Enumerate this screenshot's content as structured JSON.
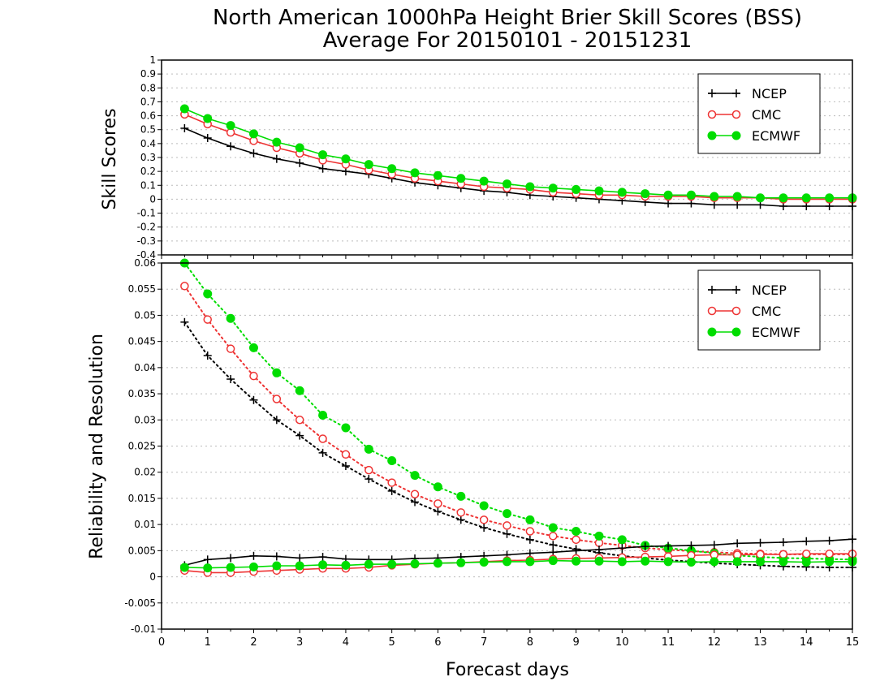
{
  "title_line1": "North American 1000hPa Height Brier Skill Scores (BSS)",
  "title_line2": "Average For 20150101 - 20151231",
  "xlabel": "Forecast days",
  "colors": {
    "NCEP": "#000000",
    "CMC": "#ee3333",
    "ECMWF": "#00dd00"
  },
  "chart_data": [
    {
      "type": "line",
      "ylabel": "Skill Scores",
      "xlim": [
        0,
        15
      ],
      "ylim": [
        -0.4,
        1
      ],
      "x_ticks": [
        "0",
        "1",
        "2",
        "3",
        "4",
        "5",
        "6",
        "7",
        "8",
        "9",
        "10",
        "11",
        "12",
        "13",
        "14",
        "15"
      ],
      "y_ticks": [
        "-0.4",
        "-0.3",
        "-0.2",
        "-0.1",
        "0",
        "0.1",
        "0.2",
        "0.3",
        "0.4",
        "0.5",
        "0.6",
        "0.7",
        "0.8",
        "0.9",
        "1"
      ],
      "grid": true,
      "legend_position": "top-right",
      "x": [
        0.5,
        1,
        1.5,
        2,
        2.5,
        3,
        3.5,
        4,
        4.5,
        5,
        5.5,
        6,
        6.5,
        7,
        7.5,
        8,
        8.5,
        9,
        9.5,
        10,
        10.5,
        11,
        11.5,
        12,
        12.5,
        13,
        13.5,
        14,
        14.5,
        15
      ],
      "series": [
        {
          "name": "NCEP",
          "marker": "plus",
          "style": "solid",
          "values": [
            0.51,
            0.44,
            0.38,
            0.33,
            0.29,
            0.26,
            0.22,
            0.2,
            0.18,
            0.15,
            0.12,
            0.1,
            0.08,
            0.06,
            0.05,
            0.03,
            0.02,
            0.01,
            0.0,
            -0.01,
            -0.02,
            -0.03,
            -0.03,
            -0.04,
            -0.04,
            -0.04,
            -0.05,
            -0.05,
            -0.05,
            -0.05
          ]
        },
        {
          "name": "CMC",
          "marker": "open-circle",
          "style": "solid",
          "values": [
            0.61,
            0.54,
            0.48,
            0.42,
            0.37,
            0.33,
            0.28,
            0.25,
            0.21,
            0.18,
            0.15,
            0.13,
            0.11,
            0.09,
            0.08,
            0.07,
            0.05,
            0.04,
            0.03,
            0.03,
            0.02,
            0.02,
            0.02,
            0.01,
            0.01,
            0.01,
            0.0,
            0.0,
            0.0,
            0.0
          ]
        },
        {
          "name": "ECMWF",
          "marker": "filled-circle",
          "style": "solid",
          "values": [
            0.65,
            0.58,
            0.53,
            0.47,
            0.41,
            0.37,
            0.32,
            0.29,
            0.25,
            0.22,
            0.19,
            0.17,
            0.15,
            0.13,
            0.11,
            0.09,
            0.08,
            0.07,
            0.06,
            0.05,
            0.04,
            0.03,
            0.03,
            0.02,
            0.02,
            0.01,
            0.01,
            0.01,
            0.01,
            0.01
          ]
        }
      ]
    },
    {
      "type": "line",
      "ylabel": "Reliability and Resolution",
      "xlim": [
        0,
        15
      ],
      "ylim": [
        -0.01,
        0.06
      ],
      "x_ticks": [
        "0",
        "1",
        "2",
        "3",
        "4",
        "5",
        "6",
        "7",
        "8",
        "9",
        "10",
        "11",
        "12",
        "13",
        "14",
        "15"
      ],
      "y_ticks": [
        "-0.01",
        "-0.005",
        "0",
        "0.005",
        "0.01",
        "0.015",
        "0.02",
        "0.025",
        "0.03",
        "0.035",
        "0.04",
        "0.045",
        "0.05",
        "0.055",
        "0.06"
      ],
      "grid": true,
      "legend_position": "top-right",
      "x": [
        0.5,
        1,
        1.5,
        2,
        2.5,
        3,
        3.5,
        4,
        4.5,
        5,
        5.5,
        6,
        6.5,
        7,
        7.5,
        8,
        8.5,
        9,
        9.5,
        10,
        10.5,
        11,
        11.5,
        12,
        12.5,
        13,
        13.5,
        14,
        14.5,
        15
      ],
      "series": [
        {
          "name": "NCEP",
          "component": "resolution",
          "marker": "plus",
          "style": "dotted",
          "values": [
            0.0487,
            0.0423,
            0.0378,
            0.0338,
            0.03,
            0.027,
            0.0237,
            0.0212,
            0.0187,
            0.0164,
            0.0143,
            0.0125,
            0.0109,
            0.0094,
            0.0082,
            0.0071,
            0.0061,
            0.0053,
            0.0046,
            0.004,
            0.0036,
            0.0032,
            0.0029,
            0.0026,
            0.0024,
            0.0022,
            0.002,
            0.0019,
            0.0018,
            0.0018
          ]
        },
        {
          "name": "CMC",
          "component": "resolution",
          "marker": "open-circle",
          "style": "dotted",
          "values": [
            0.0556,
            0.0492,
            0.0436,
            0.0384,
            0.034,
            0.03,
            0.0264,
            0.0234,
            0.0204,
            0.018,
            0.0158,
            0.014,
            0.0123,
            0.0109,
            0.0098,
            0.0087,
            0.0078,
            0.0071,
            0.0065,
            0.006,
            0.0055,
            0.0052,
            0.0049,
            0.0047,
            0.0045,
            0.0044,
            0.0043,
            0.0043,
            0.0043,
            0.0043
          ]
        },
        {
          "name": "ECMWF",
          "component": "resolution",
          "marker": "filled-circle",
          "style": "dotted",
          "values": [
            0.06,
            0.0541,
            0.0494,
            0.0438,
            0.039,
            0.0356,
            0.0309,
            0.0285,
            0.0244,
            0.0222,
            0.0194,
            0.0172,
            0.0154,
            0.0136,
            0.0121,
            0.0109,
            0.0094,
            0.0087,
            0.0078,
            0.0071,
            0.006,
            0.0055,
            0.005,
            0.0045,
            0.0041,
            0.0038,
            0.0036,
            0.0035,
            0.0034,
            0.0033
          ]
        },
        {
          "name": "NCEP",
          "component": "reliability",
          "marker": "plus",
          "style": "solid",
          "values": [
            0.0022,
            0.0033,
            0.0036,
            0.004,
            0.0039,
            0.0036,
            0.0038,
            0.0034,
            0.0033,
            0.0033,
            0.0035,
            0.0036,
            0.0038,
            0.004,
            0.0042,
            0.0045,
            0.0047,
            0.005,
            0.0052,
            0.0055,
            0.0058,
            0.0059,
            0.006,
            0.0061,
            0.0064,
            0.0065,
            0.0066,
            0.0068,
            0.0069,
            0.0072
          ]
        },
        {
          "name": "CMC",
          "component": "reliability",
          "marker": "open-circle",
          "style": "solid",
          "values": [
            0.0012,
            0.0008,
            0.0008,
            0.001,
            0.0012,
            0.0014,
            0.0016,
            0.0016,
            0.0018,
            0.0022,
            0.0024,
            0.0026,
            0.0027,
            0.0029,
            0.0031,
            0.0032,
            0.0034,
            0.0035,
            0.0036,
            0.0037,
            0.0038,
            0.0039,
            0.0041,
            0.0042,
            0.0042,
            0.0043,
            0.0043,
            0.0044,
            0.0044,
            0.0044
          ]
        },
        {
          "name": "ECMWF",
          "component": "reliability",
          "marker": "filled-circle",
          "style": "solid",
          "values": [
            0.0018,
            0.0017,
            0.0018,
            0.0019,
            0.0021,
            0.0021,
            0.0023,
            0.0022,
            0.0024,
            0.0024,
            0.0025,
            0.0026,
            0.0027,
            0.0028,
            0.0029,
            0.0029,
            0.0031,
            0.003,
            0.003,
            0.0029,
            0.003,
            0.0029,
            0.0028,
            0.0029,
            0.0029,
            0.0029,
            0.0029,
            0.0028,
            0.0029,
            0.0029
          ]
        }
      ]
    }
  ]
}
